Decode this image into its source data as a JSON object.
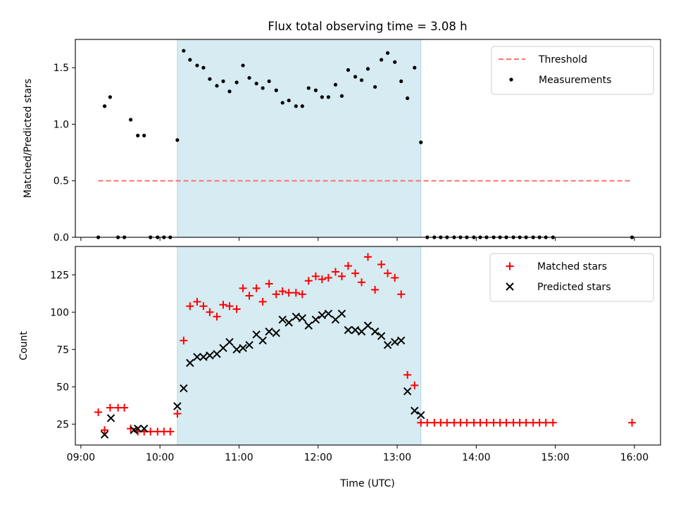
{
  "figure": {
    "title": "Flux total observing time = 3.08 h",
    "xlabel": "Time (UTC)",
    "x_tick_labels": [
      "09:00",
      "10:00",
      "11:00",
      "12:00",
      "13:00",
      "14:00",
      "15:00",
      "16:00"
    ]
  },
  "colors": {
    "threshold": "#ff7070",
    "measurements": "#000000",
    "matched": "#ff0000",
    "predicted": "#000000",
    "shade": "#add8e6"
  },
  "chart_data": [
    {
      "type": "scatter",
      "ylabel": "Matched/Predicted stars",
      "x_unit": "hours UTC",
      "xlim": [
        8.93,
        16.33
      ],
      "ylim": [
        0,
        1.75
      ],
      "y_ticks": [
        0.0,
        0.5,
        1.0,
        1.5
      ],
      "y_tick_labels": [
        "0.0",
        "0.5",
        "1.0",
        "1.5"
      ],
      "shaded_interval": [
        10.22,
        13.3
      ],
      "legend_location": "top-right",
      "threshold": {
        "name": "Threshold",
        "y": 0.5,
        "x_range": [
          9.22,
          15.98
        ],
        "style": "dashed"
      },
      "series": [
        {
          "name": "Measurements",
          "marker": "dot",
          "x": [
            9.22,
            9.3,
            9.37,
            9.47,
            9.55,
            9.63,
            9.72,
            9.8,
            9.88,
            9.97,
            10.05,
            10.13,
            10.22,
            10.3,
            10.38,
            10.47,
            10.55,
            10.63,
            10.72,
            10.8,
            10.88,
            10.97,
            11.05,
            11.13,
            11.22,
            11.3,
            11.38,
            11.47,
            11.55,
            11.63,
            11.72,
            11.8,
            11.88,
            11.97,
            12.05,
            12.13,
            12.22,
            12.3,
            12.38,
            12.47,
            12.55,
            12.63,
            12.72,
            12.8,
            12.88,
            12.97,
            13.05,
            13.13,
            13.22,
            13.3,
            13.38,
            13.47,
            13.55,
            13.63,
            13.72,
            13.8,
            13.88,
            13.97,
            14.05,
            14.13,
            14.22,
            14.3,
            14.38,
            14.47,
            14.55,
            14.63,
            14.72,
            14.8,
            14.88,
            14.97,
            15.97
          ],
          "y": [
            0.0,
            1.16,
            1.24,
            0.0,
            0.0,
            1.04,
            0.9,
            0.9,
            0.0,
            0.0,
            0.0,
            0.0,
            0.86,
            1.65,
            1.57,
            1.52,
            1.5,
            1.4,
            1.34,
            1.38,
            1.29,
            1.37,
            1.52,
            1.41,
            1.36,
            1.32,
            1.38,
            1.3,
            1.19,
            1.21,
            1.16,
            1.16,
            1.32,
            1.3,
            1.24,
            1.24,
            1.35,
            1.25,
            1.48,
            1.42,
            1.39,
            1.49,
            1.33,
            1.57,
            1.63,
            1.55,
            1.38,
            1.23,
            1.5,
            0.84,
            0.0,
            0.0,
            0.0,
            0.0,
            0.0,
            0.0,
            0.0,
            0.0,
            0.0,
            0.0,
            0.0,
            0.0,
            0.0,
            0.0,
            0.0,
            0.0,
            0.0,
            0.0,
            0.0,
            0.0,
            0.0
          ]
        }
      ]
    },
    {
      "type": "scatter",
      "ylabel": "Count",
      "x_unit": "hours UTC",
      "xlim": [
        8.93,
        16.33
      ],
      "ylim": [
        11,
        144
      ],
      "y_ticks": [
        25,
        50,
        75,
        100,
        125
      ],
      "y_tick_labels": [
        "25",
        "50",
        "75",
        "100",
        "125"
      ],
      "shaded_interval": [
        10.22,
        13.3
      ],
      "legend_location": "top-right",
      "series": [
        {
          "name": "Matched stars",
          "marker": "plus",
          "x": [
            9.22,
            9.3,
            9.37,
            9.47,
            9.55,
            9.63,
            9.72,
            9.8,
            9.88,
            9.97,
            10.05,
            10.13,
            10.22,
            10.3,
            10.38,
            10.47,
            10.55,
            10.63,
            10.72,
            10.8,
            10.88,
            10.97,
            11.05,
            11.13,
            11.22,
            11.3,
            11.38,
            11.47,
            11.55,
            11.63,
            11.72,
            11.8,
            11.88,
            11.97,
            12.05,
            12.13,
            12.22,
            12.3,
            12.38,
            12.47,
            12.55,
            12.63,
            12.72,
            12.8,
            12.88,
            12.97,
            13.05,
            13.13,
            13.22,
            13.3,
            13.38,
            13.47,
            13.55,
            13.63,
            13.72,
            13.8,
            13.88,
            13.97,
            14.05,
            14.13,
            14.22,
            14.3,
            14.38,
            14.47,
            14.55,
            14.63,
            14.72,
            14.8,
            14.88,
            14.97,
            15.97
          ],
          "y": [
            33,
            21,
            36,
            36,
            36,
            22,
            20,
            20,
            20,
            20,
            20,
            20,
            32,
            81,
            104,
            107,
            104,
            100,
            97,
            105,
            104,
            102,
            116,
            111,
            116,
            107,
            119,
            112,
            114,
            113,
            113,
            112,
            121,
            124,
            122,
            123,
            127,
            124,
            131,
            126,
            120,
            137,
            115,
            132,
            126,
            123,
            112,
            58,
            51,
            26,
            26,
            26,
            26,
            26,
            26,
            26,
            26,
            26,
            26,
            26,
            26,
            26,
            26,
            26,
            26,
            26,
            26,
            26,
            26,
            26,
            26
          ]
        },
        {
          "name": "Predicted stars",
          "marker": "x",
          "x": [
            9.3,
            9.38,
            9.67,
            9.72,
            9.8,
            10.22,
            10.3,
            10.38,
            10.47,
            10.55,
            10.63,
            10.72,
            10.8,
            10.88,
            10.97,
            11.05,
            11.13,
            11.22,
            11.3,
            11.38,
            11.47,
            11.55,
            11.63,
            11.72,
            11.8,
            11.88,
            11.97,
            12.05,
            12.13,
            12.22,
            12.3,
            12.38,
            12.47,
            12.55,
            12.63,
            12.72,
            12.8,
            12.88,
            12.97,
            13.05,
            13.13,
            13.22,
            13.3
          ],
          "y": [
            18,
            29,
            21,
            22,
            22,
            37,
            49,
            66,
            70,
            70,
            71,
            72,
            76,
            80,
            75,
            76,
            78,
            85,
            81,
            87,
            86,
            95,
            93,
            97,
            96,
            91,
            95,
            98,
            99,
            95,
            99,
            88,
            88,
            87,
            91,
            87,
            84,
            78,
            80,
            81,
            47,
            34,
            31
          ]
        }
      ]
    }
  ]
}
